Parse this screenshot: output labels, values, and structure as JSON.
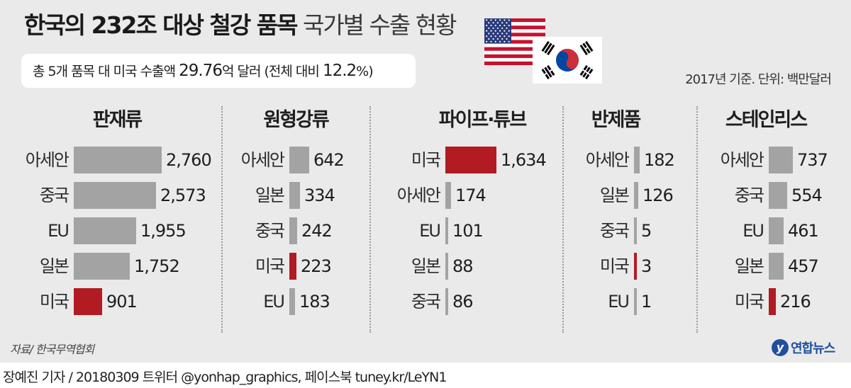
{
  "title": {
    "bold": "한국의 232조 대상 철강 품목",
    "light": "국가별 수출 현황"
  },
  "summary": {
    "prefix": "총 5개 품목 대 미국 수출액 ",
    "amount": "29.76",
    "middle": "억 달러 (전체 대비 ",
    "share": "12.2",
    "suffix": "%)"
  },
  "basis": "2017년 기준. 단위: 백만달러",
  "flags": {
    "us": "us-flag-icon",
    "kr": "korea-flag-icon"
  },
  "colors": {
    "bar": "#a3a3a3",
    "highlight": "#b21b22",
    "background": "#eaeaea"
  },
  "chart_data": [
    {
      "type": "bar",
      "title": "판재류",
      "categories": [
        "아세안",
        "중국",
        "EU",
        "일본",
        "미국"
      ],
      "values": [
        2760,
        2573,
        1955,
        1752,
        901
      ],
      "value_labels": [
        "2,760",
        "2,573",
        "1,955",
        "1,752",
        "901"
      ],
      "highlight": "미국"
    },
    {
      "type": "bar",
      "title": "원형강류",
      "categories": [
        "아세안",
        "일본",
        "중국",
        "미국",
        "EU"
      ],
      "values": [
        642,
        334,
        242,
        223,
        183
      ],
      "value_labels": [
        "642",
        "334",
        "242",
        "223",
        "183"
      ],
      "highlight": "미국"
    },
    {
      "type": "bar",
      "title": "파이프·튜브",
      "categories": [
        "미국",
        "아세안",
        "EU",
        "일본",
        "중국"
      ],
      "values": [
        1634,
        174,
        101,
        88,
        86
      ],
      "value_labels": [
        "1,634",
        "174",
        "101",
        "88",
        "86"
      ],
      "highlight": "미국"
    },
    {
      "type": "bar",
      "title": "반제품",
      "categories": [
        "아세안",
        "일본",
        "중국",
        "미국",
        "EU"
      ],
      "values": [
        182,
        126,
        5,
        3,
        1
      ],
      "value_labels": [
        "182",
        "126",
        "5",
        "3",
        "1"
      ],
      "highlight": "미국"
    },
    {
      "type": "bar",
      "title": "스테인리스",
      "categories": [
        "아세안",
        "중국",
        "EU",
        "일본",
        "미국"
      ],
      "values": [
        737,
        554,
        461,
        457,
        216
      ],
      "value_labels": [
        "737",
        "554",
        "461",
        "457",
        "216"
      ],
      "highlight": "미국"
    }
  ],
  "source": "자료/ 한국무역협회",
  "logo": {
    "mark": "y",
    "text": "연합뉴스"
  },
  "credit": "장예진 기자 / 20180309 트위터 @yonhap_graphics, 페이스북 tuney.kr/LeYN1"
}
